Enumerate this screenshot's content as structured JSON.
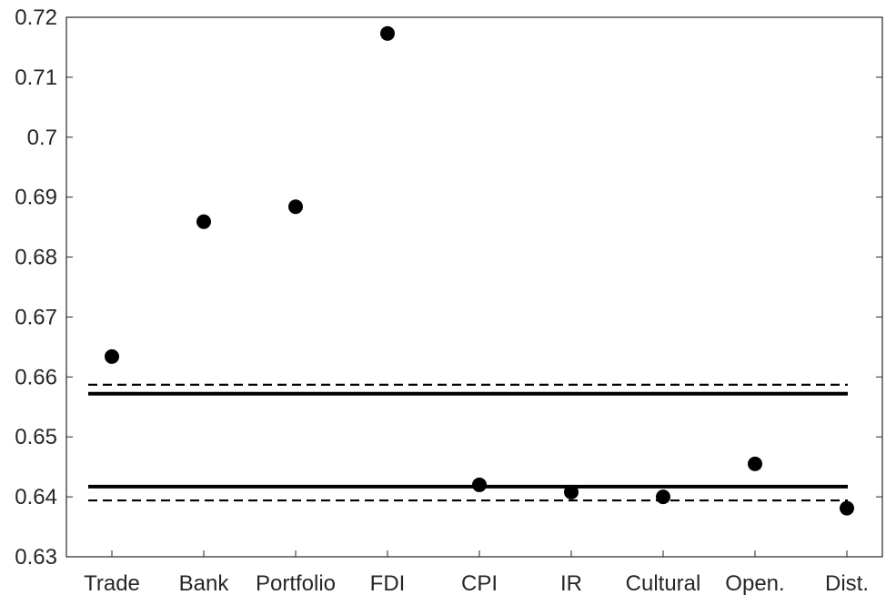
{
  "chart_data": {
    "type": "scatter",
    "title": "",
    "xlabel": "",
    "ylabel": "",
    "categories": [
      "Trade",
      "Bank",
      "Portfolio",
      "FDI",
      "CPI",
      "IR",
      "Cultural",
      "Open.",
      "Dist."
    ],
    "values": [
      0.6634,
      0.6859,
      0.6884,
      0.7173,
      0.642,
      0.6408,
      0.64,
      0.6455,
      0.6381
    ],
    "ylim": [
      0.63,
      0.72
    ],
    "yticks": [
      0.63,
      0.64,
      0.65,
      0.66,
      0.67,
      0.68,
      0.69,
      0.7,
      0.71,
      0.72
    ],
    "ytick_labels": [
      "0.63",
      "0.64",
      "0.65",
      "0.66",
      "0.67",
      "0.68",
      "0.69",
      "0.7",
      "0.71",
      "0.72"
    ],
    "grid": false,
    "marker_color": "#000000",
    "reference_lines": [
      {
        "style": "solid",
        "value": 0.6572
      },
      {
        "style": "dashed",
        "value": 0.6587
      },
      {
        "style": "solid",
        "value": 0.6417
      },
      {
        "style": "dashed",
        "value": 0.6394
      }
    ]
  }
}
